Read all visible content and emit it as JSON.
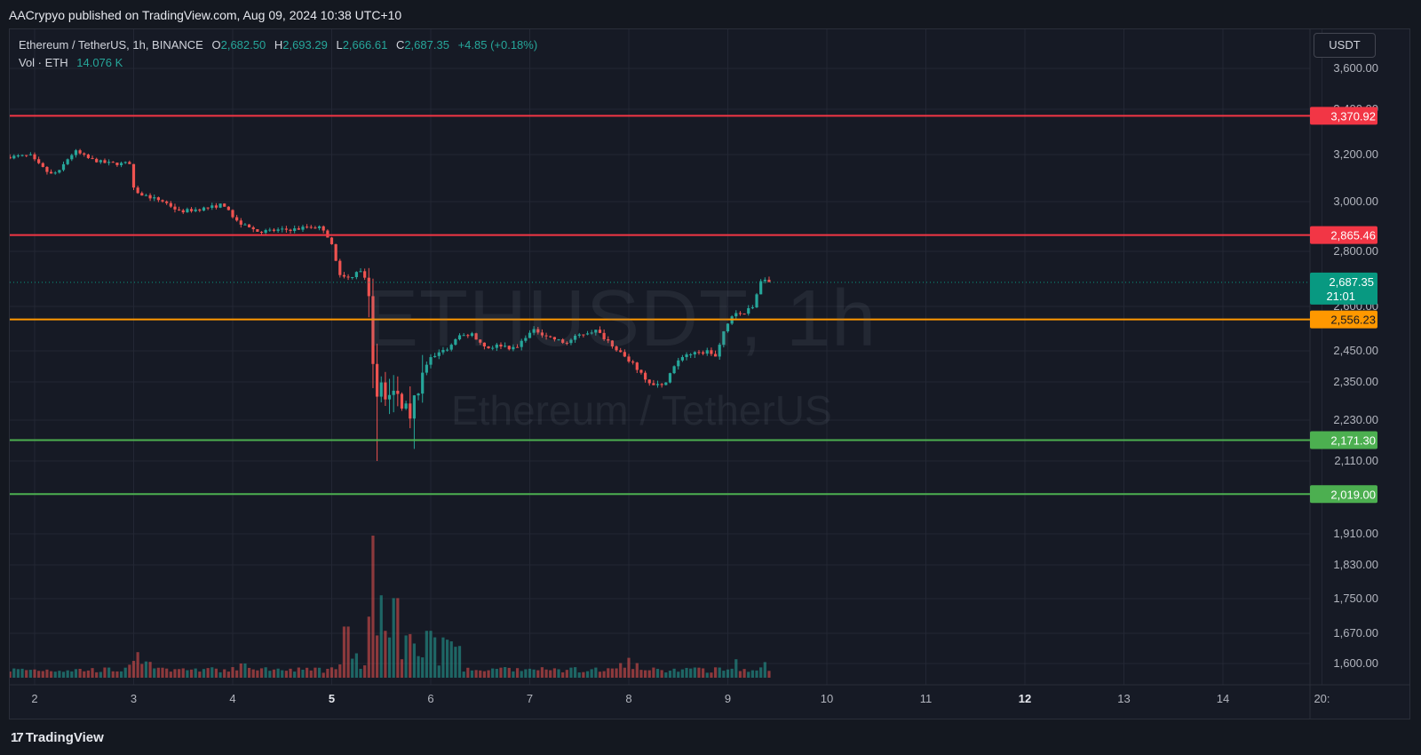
{
  "header": {
    "published": "AACrypyo published on TradingView.com, Aug 09, 2024 10:38 UTC+10"
  },
  "legend": {
    "symbol": "Ethereum / TetherUS, 1h, BINANCE",
    "o_label": "O",
    "o_value": "2,682.50",
    "h_label": "H",
    "h_value": "2,693.29",
    "l_label": "L",
    "l_value": "2,666.61",
    "c_label": "C",
    "c_value": "2,687.35",
    "change": "+4.85 (+0.18%)",
    "vol_label": "Vol · ETH",
    "vol_value": "14.076 K"
  },
  "watermark": {
    "ticker": "ETHUSDT, 1h",
    "name": "Ethereum / TetherUS"
  },
  "unit_button": "USDT",
  "footer": {
    "brand": "TradingView"
  },
  "colors": {
    "up": "#26a69a",
    "down": "#ef5350",
    "resistance": "#f23645",
    "pivot": "#ff9800",
    "support": "#4caf50",
    "current": "#089981"
  },
  "chart_data": {
    "type": "candlestick",
    "title": "Ethereum / TetherUS, 1h, BINANCE",
    "x_ticks": [
      {
        "day": 2,
        "label": "2"
      },
      {
        "day": 3,
        "label": "3"
      },
      {
        "day": 4,
        "label": "4"
      },
      {
        "day": 5,
        "label": "5",
        "bold": true
      },
      {
        "day": 6,
        "label": "6"
      },
      {
        "day": 7,
        "label": "7"
      },
      {
        "day": 8,
        "label": "8"
      },
      {
        "day": 9,
        "label": "9"
      },
      {
        "day": 10,
        "label": "10"
      },
      {
        "day": 11,
        "label": "11"
      },
      {
        "day": 12,
        "label": "12",
        "bold": true
      },
      {
        "day": 13,
        "label": "13"
      },
      {
        "day": 14,
        "label": "14"
      },
      {
        "day": 15,
        "label": "20:"
      }
    ],
    "y_ticks": [
      {
        "value": 3600,
        "label": "3,600.00"
      },
      {
        "value": 3400,
        "label": "3,400.00"
      },
      {
        "value": 3200,
        "label": "3,200.00"
      },
      {
        "value": 3000,
        "label": "3,000.00"
      },
      {
        "value": 2800,
        "label": "2,800.00"
      },
      {
        "value": 2600,
        "label": "2,600.00"
      },
      {
        "value": 2450,
        "label": "2,450.00"
      },
      {
        "value": 2350,
        "label": "2,350.00"
      },
      {
        "value": 2230,
        "label": "2,230.00"
      },
      {
        "value": 2110,
        "label": "2,110.00"
      },
      {
        "value": 1910,
        "label": "1,910.00"
      },
      {
        "value": 1830,
        "label": "1,830.00"
      },
      {
        "value": 1750,
        "label": "1,750.00"
      },
      {
        "value": 1670,
        "label": "1,670.00"
      },
      {
        "value": 1600,
        "label": "1,600.00"
      }
    ],
    "horizontal_levels": [
      {
        "value": 3370.92,
        "label": "3,370.92",
        "kind": "resistance"
      },
      {
        "value": 2865.46,
        "label": "2,865.46",
        "kind": "resistance"
      },
      {
        "value": 2556.23,
        "label": "2,556.23",
        "kind": "pivot"
      },
      {
        "value": 2171.3,
        "label": "2,171.30",
        "kind": "support"
      },
      {
        "value": 2019.0,
        "label": "2,019.00",
        "kind": "support"
      }
    ],
    "last_price": {
      "value": 2687.35,
      "label": "2,687.35",
      "countdown": "21:01"
    },
    "price_path": [
      [
        1.75,
        3190
      ],
      [
        2.0,
        3195
      ],
      [
        2.05,
        3170
      ],
      [
        2.2,
        3115
      ],
      [
        2.3,
        3130
      ],
      [
        2.35,
        3170
      ],
      [
        2.45,
        3215
      ],
      [
        2.6,
        3180
      ],
      [
        2.75,
        3165
      ],
      [
        2.9,
        3160
      ],
      [
        3.0,
        3165
      ],
      [
        3.02,
        3090
      ],
      [
        3.05,
        3040
      ],
      [
        3.2,
        3020
      ],
      [
        3.35,
        3000
      ],
      [
        3.5,
        2960
      ],
      [
        3.7,
        2970
      ],
      [
        3.85,
        2980
      ],
      [
        3.95,
        2990
      ],
      [
        4.05,
        2930
      ],
      [
        4.15,
        2905
      ],
      [
        4.3,
        2880
      ],
      [
        4.5,
        2885
      ],
      [
        4.7,
        2890
      ],
      [
        4.8,
        2900
      ],
      [
        4.95,
        2895
      ],
      [
        5.03,
        2840
      ],
      [
        5.12,
        2710
      ],
      [
        5.22,
        2700
      ],
      [
        5.32,
        2740
      ],
      [
        5.4,
        2690
      ],
      [
        5.43,
        2550
      ],
      [
        5.47,
        2330
      ],
      [
        5.55,
        2320
      ],
      [
        5.62,
        2290
      ],
      [
        5.72,
        2300
      ],
      [
        5.83,
        2260
      ],
      [
        5.92,
        2320
      ],
      [
        6.02,
        2420
      ],
      [
        6.12,
        2445
      ],
      [
        6.22,
        2460
      ],
      [
        6.32,
        2495
      ],
      [
        6.45,
        2510
      ],
      [
        6.6,
        2460
      ],
      [
        6.75,
        2470
      ],
      [
        6.9,
        2455
      ],
      [
        7.0,
        2500
      ],
      [
        7.1,
        2520
      ],
      [
        7.25,
        2495
      ],
      [
        7.4,
        2475
      ],
      [
        7.55,
        2505
      ],
      [
        7.7,
        2520
      ],
      [
        7.85,
        2480
      ],
      [
        8.0,
        2430
      ],
      [
        8.12,
        2395
      ],
      [
        8.25,
        2350
      ],
      [
        8.38,
        2335
      ],
      [
        8.48,
        2390
      ],
      [
        8.6,
        2440
      ],
      [
        8.72,
        2440
      ],
      [
        8.85,
        2450
      ],
      [
        8.92,
        2430
      ],
      [
        9.0,
        2510
      ],
      [
        9.1,
        2580
      ],
      [
        9.2,
        2575
      ],
      [
        9.3,
        2600
      ],
      [
        9.35,
        2670
      ],
      [
        9.4,
        2710
      ],
      [
        9.45,
        2687.35
      ]
    ],
    "volume_spikes": [
      [
        3.05,
        0.18
      ],
      [
        4.1,
        0.1
      ],
      [
        5.15,
        0.36
      ],
      [
        5.43,
        1.0
      ],
      [
        5.5,
        0.58
      ],
      [
        5.55,
        0.33
      ],
      [
        5.65,
        0.56
      ],
      [
        5.98,
        0.33
      ],
      [
        6.05,
        0.24
      ],
      [
        8.0,
        0.14
      ],
      [
        9.08,
        0.13
      ],
      [
        9.38,
        0.11
      ]
    ],
    "x_range": [
      1.65,
      15.0
    ],
    "y_range": [
      1570,
      3700
    ]
  }
}
